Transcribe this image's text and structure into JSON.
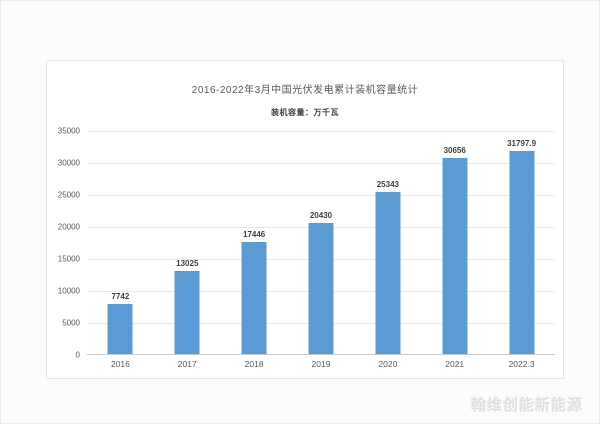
{
  "page": {
    "watermark": "翰维创能新能源"
  },
  "chart_data": {
    "type": "bar",
    "title": "2016-2022年3月中国光伏发电累计装机容量统计",
    "legend": "装机容量：万千瓦",
    "categories": [
      "2016",
      "2017",
      "2018",
      "2019",
      "2020",
      "2021",
      "2022.3"
    ],
    "values": [
      7742,
      13025,
      17446,
      20430,
      25343,
      30656,
      31797.9
    ],
    "value_labels": [
      "7742",
      "13025",
      "17446",
      "20430",
      "25343",
      "30656",
      "31797.9"
    ],
    "xlabel": "",
    "ylabel": "",
    "ylim": [
      0,
      35000
    ],
    "yticks": [
      0,
      5000,
      10000,
      15000,
      20000,
      25000,
      30000,
      35000
    ],
    "grid": "on",
    "legend_position": "top",
    "bar_color": "#5B9BD5",
    "gridline_color": "#e7e7e7",
    "axis_line_color": "#c9c9c9",
    "title_color": "#595959",
    "tick_label_color": "#595959",
    "data_label_color": "#3f3f3f"
  }
}
